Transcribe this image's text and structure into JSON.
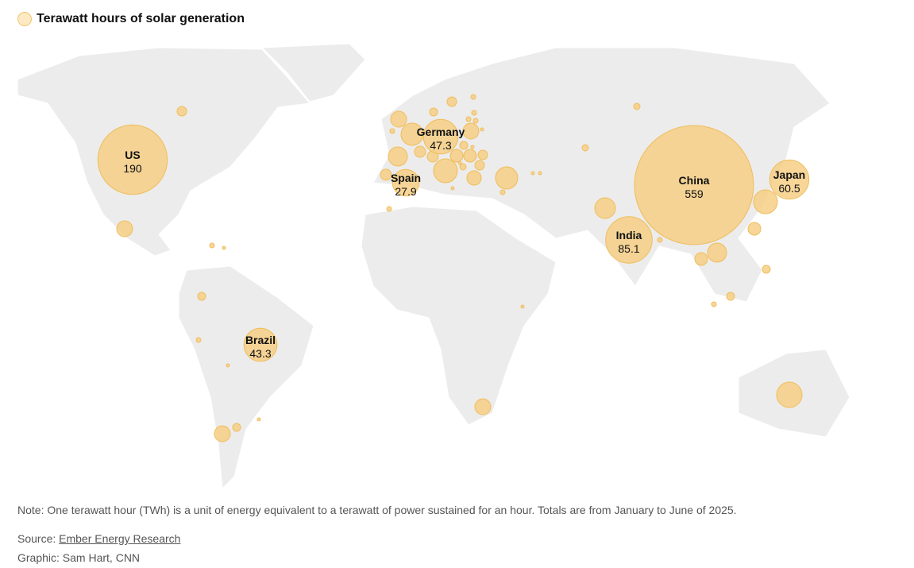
{
  "legend": {
    "label": "Terawatt hours of solar generation",
    "color": "#f6cf86"
  },
  "chart_data": {
    "type": "bubble-map",
    "unit": "TWh",
    "series": [
      {
        "name": "US",
        "value": 190
      },
      {
        "name": "China",
        "value": 559
      },
      {
        "name": "India",
        "value": 85.1
      },
      {
        "name": "Japan",
        "value": 60.5
      },
      {
        "name": "Germany",
        "value": 47.3
      },
      {
        "name": "Brazil",
        "value": 43.3
      },
      {
        "name": "Spain",
        "value": 27.9
      }
    ]
  },
  "colors": {
    "land": "#ececec",
    "bubble_fill": "#f6cf86",
    "bubble_stroke": "#f0bd5a"
  },
  "footer": {
    "note": "Note: One terawatt hour (TWh) is a unit of energy equivalent to a terawatt of power sustained for an hour. Totals are from January to June of 2025.",
    "source_prefix": "Source: ",
    "source_link": "Ember Energy Research",
    "graphic": "Graphic: Sam Hart, CNN"
  }
}
